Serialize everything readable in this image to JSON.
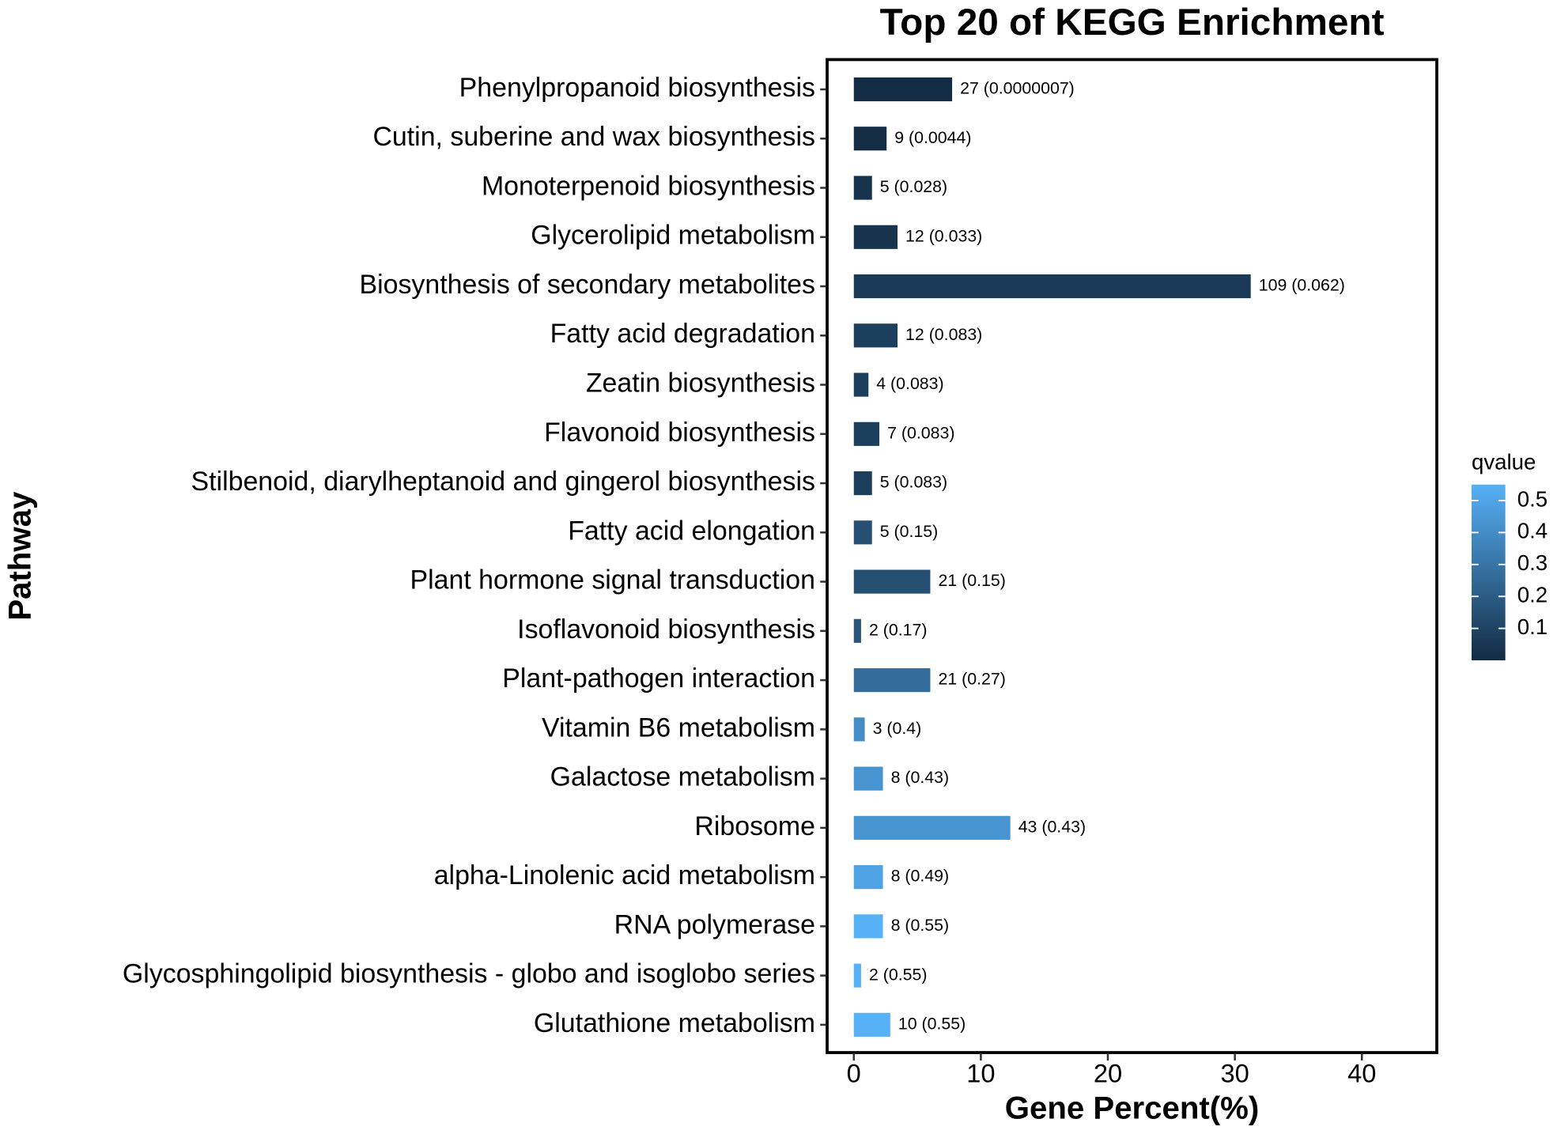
{
  "chart_data": {
    "type": "bar",
    "orientation": "horizontal",
    "title": "Top 20 of KEGG Enrichment",
    "x_label": "Gene Percent(%)",
    "y_label": "Pathway",
    "categories": [
      "Phenylpropanoid biosynthesis",
      "Cutin, suberine and wax biosynthesis",
      "Monoterpenoid biosynthesis",
      "Glycerolipid metabolism",
      "Biosynthesis of secondary metabolites",
      "Fatty acid degradation",
      "Zeatin biosynthesis",
      "Flavonoid biosynthesis",
      "Stilbenoid, diarylheptanoid and gingerol biosynthesis",
      "Fatty acid elongation",
      "Plant hormone signal transduction",
      "Isoflavonoid biosynthesis",
      "Plant-pathogen interaction",
      "Vitamin B6 metabolism",
      "Galactose metabolism",
      "Ribosome",
      "alpha-Linolenic acid metabolism",
      "RNA polymerase",
      "Glycosphingolipid biosynthesis - globo and isoglobo series",
      "Glutathione metabolism"
    ],
    "values": [
      7.74,
      2.58,
      1.43,
      3.44,
      31.25,
      3.44,
      1.15,
      2.01,
      1.43,
      1.43,
      6.02,
      0.57,
      6.02,
      0.86,
      2.29,
      12.32,
      2.29,
      2.29,
      0.57,
      2.87
    ],
    "bar_labels": [
      "27 (0.0000007)",
      "9 (0.0044)",
      "5 (0.028)",
      "12 (0.033)",
      "109 (0.062)",
      "12 (0.083)",
      "4 (0.083)",
      "7 (0.083)",
      "5 (0.083)",
      "5 (0.15)",
      "21 (0.15)",
      "2 (0.17)",
      "21 (0.27)",
      "3 (0.4)",
      "8 (0.43)",
      "43 (0.43)",
      "8 (0.49)",
      "8 (0.55)",
      "2 (0.55)",
      "10 (0.55)"
    ],
    "qvalues": [
      7e-07,
      0.0044,
      0.028,
      0.033,
      0.062,
      0.083,
      0.083,
      0.083,
      0.083,
      0.15,
      0.15,
      0.17,
      0.27,
      0.4,
      0.43,
      0.43,
      0.49,
      0.55,
      0.55,
      0.55
    ],
    "xlim": [
      -2.1,
      45.9
    ],
    "xticks": [
      0,
      10,
      20,
      30,
      40
    ],
    "colorbar": {
      "title": "qvalue",
      "lim": [
        0,
        0.55
      ],
      "ticks": [
        0.1,
        0.2,
        0.3,
        0.4,
        0.5
      ],
      "low_color": "#132B43",
      "high_color": "#56B1F7"
    }
  }
}
